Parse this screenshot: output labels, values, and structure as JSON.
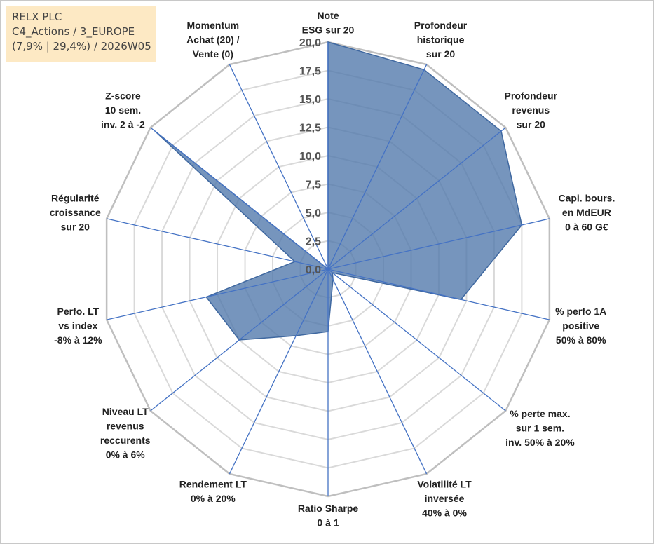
{
  "info_box": {
    "line1": "RELX PLC",
    "line2": "C4_Actions / 3_EUROPE",
    "line3": "(7,9% | 29,4%) / 2026W05"
  },
  "chart_data": {
    "type": "radar",
    "title": "",
    "range": [
      0,
      20
    ],
    "ticks": [
      "0,0",
      "2,5",
      "5,0",
      "7,5",
      "10,0",
      "12,5",
      "15,0",
      "17,5",
      "20,0"
    ],
    "tick_values": [
      0,
      2.5,
      5,
      7.5,
      10,
      12.5,
      15,
      17.5,
      20
    ],
    "grid": true,
    "axes": [
      [
        "Note",
        "ESG sur 20"
      ],
      [
        "Profondeur",
        "historique",
        "sur 20"
      ],
      [
        "Profondeur",
        "revenus",
        "sur 20"
      ],
      [
        "Capi. bours.",
        "en MdEUR",
        "0 à 60 G€"
      ],
      [
        "% perfo 1A",
        "positive",
        "50% à 80%"
      ],
      [
        "% perte max.",
        "sur 1 sem.",
        "inv. 50% à 20%"
      ],
      [
        "Volatilité LT",
        "inversée",
        "40% à 0%"
      ],
      [
        "Ratio Sharpe",
        "0 à 1"
      ],
      [
        "Rendement LT",
        "0% à 20%"
      ],
      [
        "Niveau LT",
        "revenus",
        "reccurents",
        "0% à 6%"
      ],
      [
        "Perfo. LT",
        "vs index",
        "-8% à 12%"
      ],
      [
        "Régularité",
        "croissance",
        "sur 20"
      ],
      [
        "Z-score",
        "10 sem.",
        "inv. 2 à -2"
      ],
      [
        "Momentum",
        "Achat (20) /",
        "Vente (0)"
      ]
    ],
    "series": [
      {
        "values": [
          20,
          19.5,
          19.5,
          17.5,
          12,
          0.5,
          1,
          5.5,
          6.5,
          10,
          11,
          3,
          19.5,
          0
        ],
        "color": "#4f77aa"
      }
    ]
  }
}
